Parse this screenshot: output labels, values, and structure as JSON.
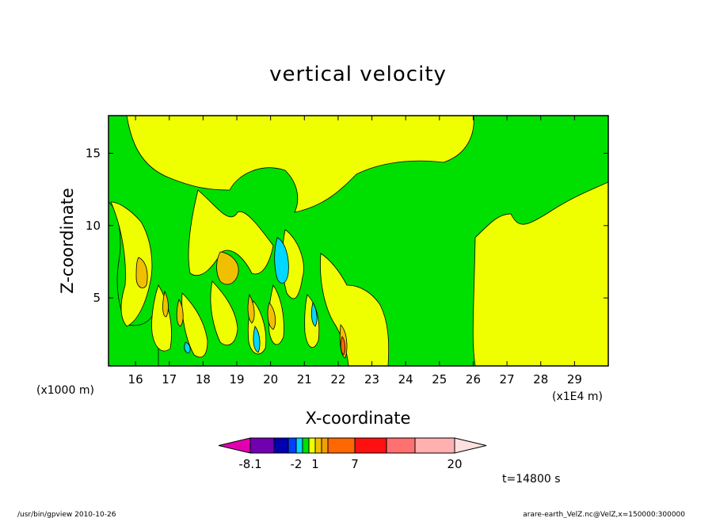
{
  "chart_data": {
    "type": "heatmap",
    "title": "vertical velocity",
    "xlabel": "X-coordinate",
    "ylabel": "Z-coordinate",
    "x_scale_note": "(x1E4 m)",
    "y_scale_note": "(x1000 m)",
    "xlim": [
      15.2,
      30.0
    ],
    "ylim": [
      0.3,
      17.6
    ],
    "x_ticks": [
      16,
      17,
      18,
      19,
      20,
      21,
      22,
      23,
      24,
      25,
      26,
      27,
      28,
      29
    ],
    "y_ticks": [
      5,
      10,
      15
    ],
    "colorbar": {
      "levels": [
        -8.1,
        -6,
        -4,
        -2,
        -1,
        0,
        1,
        2,
        3,
        4,
        7,
        10,
        14,
        20
      ],
      "labels": [
        "-8.1",
        "-2",
        "1",
        "7",
        "20"
      ],
      "colors": [
        "#e000b0",
        "#7000b0",
        "#0000b0",
        "#0040ff",
        "#00d8ff",
        "#00e000",
        "#f0ff00",
        "#f0c000",
        "#f0a000",
        "#ff6800",
        "#ff1010",
        "#ff7070",
        "#ffb0b0",
        "#ffe0e0"
      ],
      "extend": "both"
    },
    "annotation": "t=14800 s"
  },
  "footer": {
    "left": "/usr/bin/gpview   2010-10-26",
    "right": "arare-earth_VelZ.nc@VelZ,x=150000:300000"
  }
}
